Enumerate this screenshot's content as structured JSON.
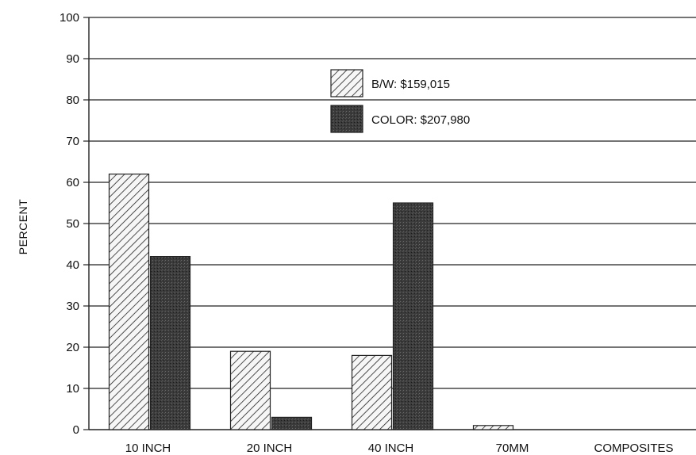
{
  "chart_data": {
    "type": "bar",
    "title": "",
    "xlabel": "",
    "ylabel": "PERCENT",
    "ylim": [
      0,
      100
    ],
    "yticks": [
      0,
      10,
      20,
      30,
      40,
      50,
      60,
      70,
      80,
      90,
      100
    ],
    "grid": true,
    "legend_position": "top-center",
    "categories": [
      "10 INCH",
      "20 INCH",
      "40 INCH",
      "70MM",
      "COMPOSITES"
    ],
    "series": [
      {
        "name": "B/W: $159,015",
        "pattern": "diagonal-hatch",
        "values": [
          62,
          19,
          18,
          1,
          0
        ]
      },
      {
        "name": "COLOR: $207,980",
        "pattern": "dark-stipple",
        "values": [
          42,
          3,
          55,
          0,
          0
        ]
      }
    ],
    "colors": {
      "bw_stroke": "#222222",
      "bw_fill": "#f4f4f4",
      "color_fill": "#3a3a3a",
      "grid": "#222222"
    }
  }
}
